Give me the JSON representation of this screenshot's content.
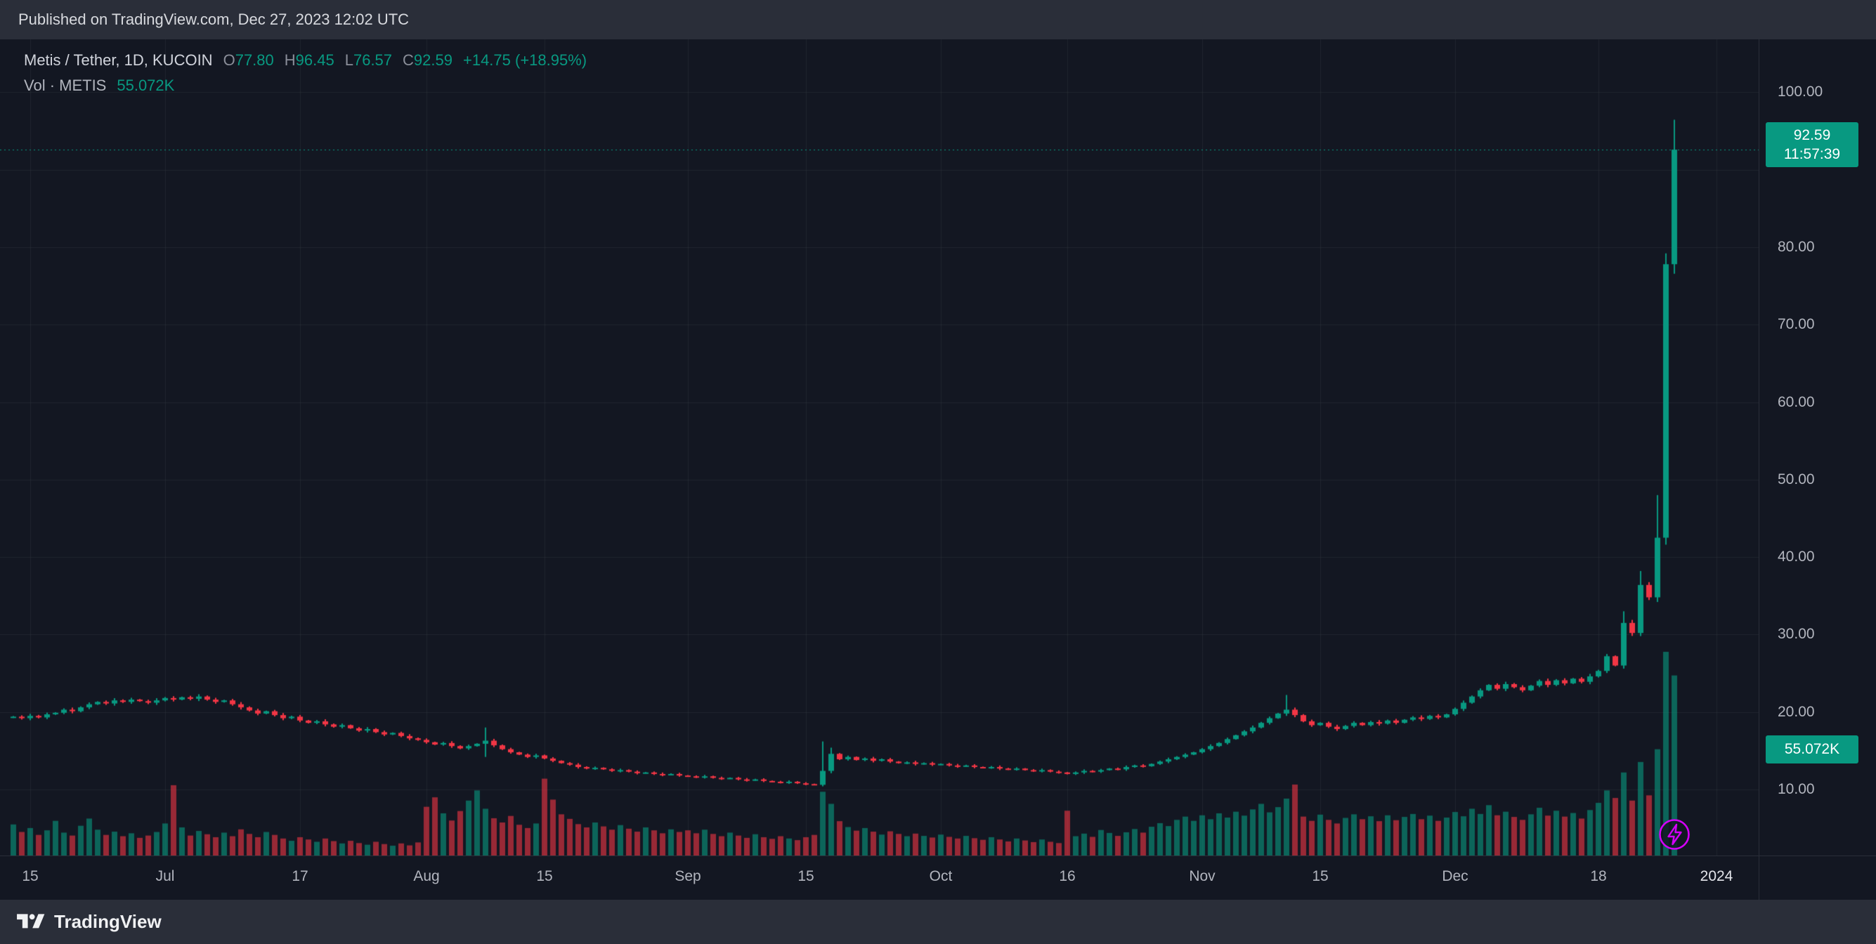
{
  "header": {
    "published_text": "Published on TradingView.com, Dec 27, 2023 12:02 UTC"
  },
  "legend": {
    "symbol_title": "Metis / Tether, 1D, KUCOIN",
    "ohlc": {
      "o_label": "O",
      "o": "77.80",
      "h_label": "H",
      "h": "96.45",
      "l_label": "L",
      "l": "76.57",
      "c_label": "C",
      "c": "92.59",
      "change": "+14.75 (+18.95%)"
    },
    "volume_label": "Vol · METIS",
    "volume_value": "55.072K"
  },
  "price_scale": {
    "last_price_badge": {
      "price": "92.59",
      "countdown": "11:57:39"
    },
    "volume_badge": {
      "value": "55.072K"
    }
  },
  "footer": {
    "brand": "TradingView"
  },
  "chart_data": {
    "type": "candlestick",
    "title": "Metis / Tether, 1D, KUCOIN",
    "pair": "Metis / Tether",
    "interval": "1D",
    "exchange": "KUCOIN",
    "ohlc_last": {
      "open": 77.8,
      "high": 96.45,
      "low": 76.57,
      "close": 92.59
    },
    "change": 14.75,
    "change_pct": 18.95,
    "last_volume_k": 55.072,
    "y_ticks": [
      {
        "label": "100.00",
        "value": 100
      },
      {
        "label": "80.00",
        "value": 80
      },
      {
        "label": "70.00",
        "value": 70
      },
      {
        "label": "60.00",
        "value": 60
      },
      {
        "label": "50.00",
        "value": 50
      },
      {
        "label": "40.00",
        "value": 40
      },
      {
        "label": "30.00",
        "value": 30
      },
      {
        "label": "20.00",
        "value": 20
      },
      {
        "label": "10.00",
        "value": 10
      }
    ],
    "y_axis": {
      "visible_price_min": 1.5,
      "visible_price_max": 106.5,
      "grid": true
    },
    "x_ticks": [
      {
        "label": "15",
        "index": 2
      },
      {
        "label": "Jul",
        "index": 18
      },
      {
        "label": "17",
        "index": 34
      },
      {
        "label": "Aug",
        "index": 49
      },
      {
        "label": "15",
        "index": 63
      },
      {
        "label": "Sep",
        "index": 80
      },
      {
        "label": "15",
        "index": 94
      },
      {
        "label": "Oct",
        "index": 110
      },
      {
        "label": "16",
        "index": 125
      },
      {
        "label": "Nov",
        "index": 141
      },
      {
        "label": "15",
        "index": 155
      },
      {
        "label": "Dec",
        "index": 171
      },
      {
        "label": "18",
        "index": 188
      },
      {
        "label": "2024",
        "index": 202,
        "strong": true
      }
    ],
    "first_open": 19.3,
    "closes": [
      19.4,
      19.2,
      19.5,
      19.3,
      19.7,
      19.9,
      20.3,
      20.1,
      20.6,
      21.0,
      21.3,
      21.1,
      21.5,
      21.3,
      21.6,
      21.4,
      21.2,
      21.5,
      21.8,
      21.6,
      21.9,
      21.7,
      22.0,
      21.6,
      21.3,
      21.5,
      21.0,
      20.6,
      20.2,
      19.8,
      20.1,
      19.6,
      19.2,
      19.4,
      18.9,
      18.6,
      18.8,
      18.4,
      18.1,
      18.3,
      17.9,
      17.6,
      17.8,
      17.4,
      17.1,
      17.3,
      16.9,
      16.6,
      16.4,
      16.1,
      15.8,
      16.0,
      15.6,
      15.3,
      15.6,
      15.9,
      16.3,
      15.7,
      15.2,
      14.8,
      14.5,
      14.2,
      14.4,
      14.0,
      13.7,
      13.4,
      13.2,
      12.9,
      12.7,
      12.8,
      12.6,
      12.4,
      12.5,
      12.3,
      12.1,
      12.2,
      12.0,
      11.9,
      12.0,
      11.8,
      11.7,
      11.6,
      11.7,
      11.5,
      11.4,
      11.5,
      11.3,
      11.2,
      11.3,
      11.1,
      11.0,
      10.9,
      11.0,
      10.8,
      10.7,
      10.6,
      12.4,
      14.6,
      13.9,
      14.2,
      13.8,
      14.0,
      13.7,
      13.9,
      13.6,
      13.4,
      13.5,
      13.3,
      13.4,
      13.2,
      13.3,
      13.1,
      13.0,
      13.1,
      12.9,
      12.8,
      12.9,
      12.7,
      12.6,
      12.7,
      12.5,
      12.4,
      12.5,
      12.3,
      12.2,
      12.0,
      12.2,
      12.4,
      12.3,
      12.5,
      12.7,
      12.6,
      12.9,
      13.1,
      13.0,
      13.3,
      13.6,
      13.9,
      14.2,
      14.5,
      14.8,
      15.2,
      15.6,
      16.0,
      16.5,
      17.0,
      17.5,
      18.0,
      18.6,
      19.2,
      19.8,
      20.3,
      19.6,
      18.8,
      18.3,
      18.6,
      18.1,
      17.8,
      18.2,
      18.6,
      18.3,
      18.7,
      18.5,
      18.9,
      18.6,
      19.0,
      19.3,
      19.1,
      19.5,
      19.3,
      19.7,
      20.4,
      21.2,
      22.0,
      22.8,
      23.5,
      23.0,
      23.6,
      23.2,
      22.8,
      23.4,
      24.0,
      23.5,
      24.1,
      23.7,
      24.3,
      23.9,
      24.6,
      25.3,
      27.2,
      26.0,
      31.5,
      30.2,
      36.4,
      34.8,
      42.5,
      77.8,
      92.59
    ],
    "volumes_k": [
      9.5,
      7.2,
      8.4,
      6.3,
      7.7,
      10.6,
      7.0,
      6.1,
      9.1,
      11.3,
      7.9,
      6.3,
      7.3,
      5.9,
      6.8,
      5.4,
      6.1,
      7.2,
      9.8,
      21.5,
      8.6,
      6.1,
      7.5,
      6.5,
      5.6,
      7.0,
      5.9,
      8.0,
      6.6,
      5.6,
      7.2,
      6.3,
      5.2,
      4.5,
      5.6,
      4.9,
      4.2,
      5.2,
      4.4,
      3.7,
      4.5,
      3.8,
      3.3,
      4.2,
      3.5,
      3.0,
      3.7,
      3.1,
      4.0,
      14.9,
      17.8,
      12.9,
      10.7,
      13.6,
      16.8,
      19.9,
      14.3,
      11.4,
      10.1,
      12.1,
      9.4,
      8.4,
      9.8,
      23.5,
      17.1,
      12.6,
      11.2,
      9.6,
      8.6,
      10.1,
      8.9,
      7.9,
      9.3,
      8.2,
      7.3,
      8.6,
      7.7,
      6.8,
      8.0,
      7.2,
      7.7,
      6.8,
      7.9,
      6.6,
      5.9,
      7.0,
      6.1,
      5.4,
      6.5,
      5.6,
      5.1,
      5.9,
      5.2,
      4.7,
      5.6,
      6.3,
      19.5,
      15.8,
      10.5,
      8.7,
      7.6,
      8.4,
      7.3,
      6.4,
      7.4,
      6.6,
      5.9,
      6.7,
      6.0,
      5.5,
      6.4,
      5.7,
      5.2,
      6.0,
      5.3,
      4.8,
      5.6,
      4.9,
      4.3,
      5.2,
      4.6,
      4.1,
      4.9,
      4.2,
      3.8,
      13.7,
      5.9,
      6.7,
      5.7,
      7.8,
      6.9,
      6.0,
      7.1,
      8.1,
      7.0,
      8.8,
      9.9,
      9.0,
      10.9,
      11.9,
      10.6,
      12.3,
      11.1,
      12.9,
      11.6,
      13.4,
      12.2,
      14.1,
      15.8,
      13.2,
      14.8,
      17.4,
      21.7,
      11.9,
      10.6,
      12.5,
      10.9,
      9.8,
      11.5,
      12.6,
      11.1,
      12.0,
      10.5,
      12.3,
      10.8,
      11.8,
      12.7,
      11.1,
      12.2,
      10.6,
      11.6,
      13.3,
      12.0,
      14.3,
      12.7,
      15.4,
      12.3,
      13.4,
      11.8,
      10.9,
      12.6,
      14.6,
      12.2,
      13.7,
      11.9,
      13.0,
      11.3,
      13.9,
      16.1,
      19.9,
      17.6,
      25.4,
      16.8,
      28.6,
      18.4,
      32.5,
      62.3,
      55.072
    ],
    "ohlc_overrides": {
      "56": [
        15.9,
        18.0,
        14.2,
        16.3
      ],
      "96": [
        10.6,
        16.2,
        10.4,
        12.4
      ],
      "97": [
        12.4,
        15.4,
        12.1,
        14.6
      ],
      "151": [
        19.8,
        22.2,
        19.5,
        20.3
      ],
      "191": [
        26.0,
        33.0,
        25.6,
        31.5
      ],
      "193": [
        30.2,
        38.2,
        29.8,
        36.4
      ],
      "195": [
        34.8,
        48.0,
        34.2,
        42.5
      ],
      "196": [
        42.5,
        79.2,
        41.6,
        77.8
      ],
      "197": [
        77.8,
        96.45,
        76.57,
        92.59
      ]
    },
    "vol_scale_max_k": 62.3,
    "colors": {
      "up": "#089981",
      "down": "#f23645",
      "vol_up": "rgba(8,153,129,0.6)",
      "vol_down": "rgba(242,54,69,0.6)",
      "grid": "rgba(42,46,57,0.6)",
      "badge": "#089981",
      "lightning": "#d500f9"
    }
  }
}
